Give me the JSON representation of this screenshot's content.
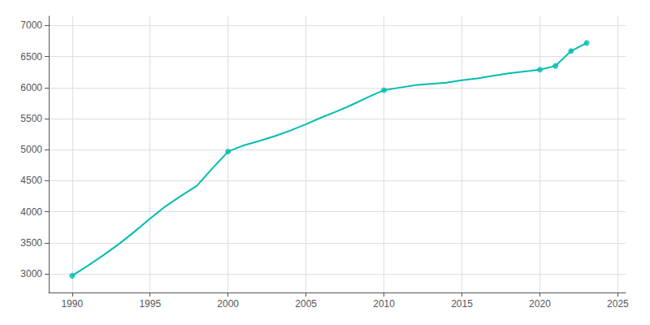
{
  "chart_data": {
    "type": "line",
    "x": [
      1990,
      1991,
      1992,
      1993,
      1994,
      1995,
      1996,
      1997,
      1998,
      1999,
      2000,
      2001,
      2002,
      2003,
      2004,
      2005,
      2006,
      2007,
      2008,
      2009,
      2010,
      2011,
      2012,
      2013,
      2014,
      2015,
      2016,
      2017,
      2018,
      2019,
      2020,
      2021,
      2022,
      2023
    ],
    "series": [
      {
        "type": "line",
        "color": "#00bdb0",
        "values": [
          2970,
          3130,
          3300,
          3480,
          3680,
          3890,
          4090,
          4260,
          4420,
          4700,
          4970,
          5070,
          5140,
          5220,
          5310,
          5410,
          5520,
          5620,
          5730,
          5850,
          5960,
          6000,
          6040,
          6060,
          6080,
          6120,
          6150,
          6190,
          6230,
          6260,
          6290,
          6350,
          6590,
          6720
        ]
      },
      {
        "type": "scatter",
        "marker": "circle",
        "color": "#00bdb0",
        "x": [
          1990,
          2000,
          2010,
          2020,
          2021,
          2022,
          2023
        ],
        "values": [
          2970,
          4970,
          5960,
          6290,
          6350,
          6590,
          6720
        ]
      }
    ],
    "xlim": [
      1988.5,
      2025.5
    ],
    "ylim": [
      2700,
      7150
    ],
    "xticks": [
      1990,
      1995,
      2000,
      2005,
      2010,
      2015,
      2020,
      2025
    ],
    "yticks": [
      3000,
      3500,
      4000,
      4500,
      5000,
      5500,
      6000,
      6500,
      7000
    ],
    "grid": true
  }
}
